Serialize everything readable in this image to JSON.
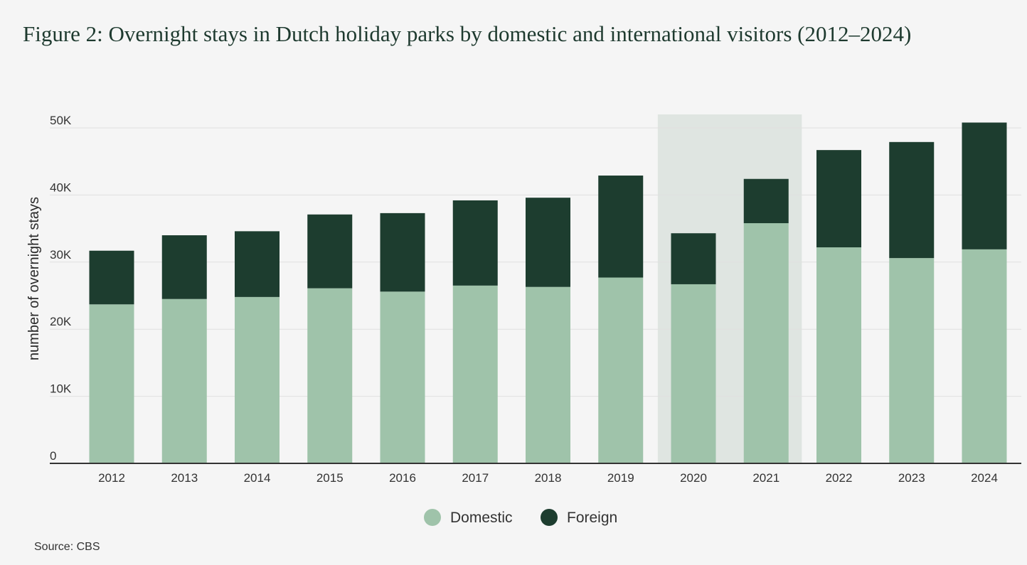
{
  "chart_data": {
    "type": "bar",
    "stacked": true,
    "title": "Figure 2: Overnight stays in Dutch holiday parks by domestic and international visitors (2012–2024)",
    "xlabel": "",
    "ylabel": "number of overnight stays",
    "ylim": [
      0,
      52000
    ],
    "yticks": [
      {
        "value": 0,
        "label": "0"
      },
      {
        "value": 10000,
        "label": "10K"
      },
      {
        "value": 20000,
        "label": "20K"
      },
      {
        "value": 30000,
        "label": "30K"
      },
      {
        "value": 40000,
        "label": "40K"
      },
      {
        "value": 50000,
        "label": "50K"
      }
    ],
    "categories": [
      "2012",
      "2013",
      "2014",
      "2015",
      "2016",
      "2017",
      "2018",
      "2019",
      "2020",
      "2021",
      "2022",
      "2023",
      "2024"
    ],
    "series": [
      {
        "name": "Domestic",
        "color": "#9fc3aa",
        "values": [
          23700,
          24500,
          24800,
          26100,
          25600,
          26500,
          26300,
          27700,
          26700,
          35800,
          32200,
          30600,
          31900
        ]
      },
      {
        "name": "Foreign",
        "color": "#1d3d2f",
        "values": [
          8000,
          9500,
          9800,
          11000,
          11700,
          12700,
          13300,
          15200,
          7600,
          6600,
          14500,
          17300,
          18900
        ]
      }
    ],
    "highlight": {
      "from": "2020",
      "to": "2021",
      "color": "#dfe5e1"
    },
    "grid": true,
    "legend_position": "bottom-center"
  },
  "source": "Source: CBS"
}
